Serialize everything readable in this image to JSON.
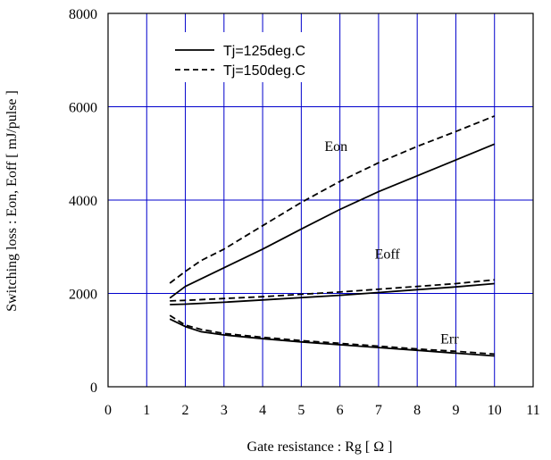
{
  "chart_data": {
    "type": "line",
    "xlabel": "Gate resistance  :  Rg  [ Ω ]",
    "ylabel": "Switching loss  :  Eon, Eoff  [ mJ/pulse ]",
    "xlim": [
      0,
      11
    ],
    "ylim": [
      0,
      8000
    ],
    "xticks": [
      0,
      1,
      2,
      3,
      4,
      5,
      6,
      7,
      8,
      9,
      10,
      11
    ],
    "yticks": [
      0,
      2000,
      4000,
      6000,
      8000
    ],
    "grid": true,
    "legend_position": "top-left",
    "legend": [
      {
        "label": "Tj=125deg.C",
        "style": "solid"
      },
      {
        "label": "Tj=150deg.C",
        "style": "dashed"
      }
    ],
    "annotations": [
      {
        "text": "Eon",
        "x": 5.6,
        "y": 5050
      },
      {
        "text": "Eoff",
        "x": 6.9,
        "y": 2750
      },
      {
        "text": "Err",
        "x": 8.6,
        "y": 930
      }
    ],
    "series": [
      {
        "curve": "Eon",
        "tj": "125",
        "style": "solid",
        "points": [
          [
            1.6,
            1900
          ],
          [
            2,
            2150
          ],
          [
            3,
            2550
          ],
          [
            4,
            2950
          ],
          [
            5,
            3380
          ],
          [
            6,
            3800
          ],
          [
            7,
            4180
          ],
          [
            8,
            4520
          ],
          [
            9,
            4860
          ],
          [
            10,
            5200
          ]
        ]
      },
      {
        "curve": "Eon",
        "tj": "150",
        "style": "dashed",
        "points": [
          [
            1.6,
            2220
          ],
          [
            2,
            2470
          ],
          [
            2.4,
            2700
          ],
          [
            3,
            2950
          ],
          [
            4,
            3450
          ],
          [
            5,
            3950
          ],
          [
            6,
            4400
          ],
          [
            7,
            4800
          ],
          [
            8,
            5150
          ],
          [
            9,
            5470
          ],
          [
            10,
            5800
          ]
        ]
      },
      {
        "curve": "Eoff",
        "tj": "125",
        "style": "solid",
        "points": [
          [
            1.6,
            1760
          ],
          [
            2,
            1770
          ],
          [
            3,
            1810
          ],
          [
            4,
            1860
          ],
          [
            5,
            1910
          ],
          [
            6,
            1960
          ],
          [
            7,
            2020
          ],
          [
            8,
            2080
          ],
          [
            9,
            2140
          ],
          [
            10,
            2210
          ]
        ]
      },
      {
        "curve": "Eoff",
        "tj": "150",
        "style": "dashed",
        "points": [
          [
            1.6,
            1840
          ],
          [
            2,
            1850
          ],
          [
            3,
            1890
          ],
          [
            4,
            1930
          ],
          [
            5,
            1980
          ],
          [
            6,
            2030
          ],
          [
            7,
            2090
          ],
          [
            8,
            2150
          ],
          [
            9,
            2210
          ],
          [
            10,
            2290
          ]
        ]
      },
      {
        "curve": "Err",
        "tj": "125",
        "style": "solid",
        "points": [
          [
            1.6,
            1450
          ],
          [
            2,
            1290
          ],
          [
            2.4,
            1180
          ],
          [
            3,
            1110
          ],
          [
            4,
            1030
          ],
          [
            5,
            960
          ],
          [
            6,
            900
          ],
          [
            7,
            840
          ],
          [
            8,
            780
          ],
          [
            9,
            720
          ],
          [
            10,
            660
          ]
        ]
      },
      {
        "curve": "Err",
        "tj": "150",
        "style": "dashed",
        "points": [
          [
            1.6,
            1530
          ],
          [
            2,
            1320
          ],
          [
            2.4,
            1230
          ],
          [
            3,
            1140
          ],
          [
            4,
            1060
          ],
          [
            5,
            990
          ],
          [
            6,
            930
          ],
          [
            7,
            870
          ],
          [
            8,
            810
          ],
          [
            9,
            760
          ],
          [
            10,
            700
          ]
        ]
      }
    ]
  }
}
